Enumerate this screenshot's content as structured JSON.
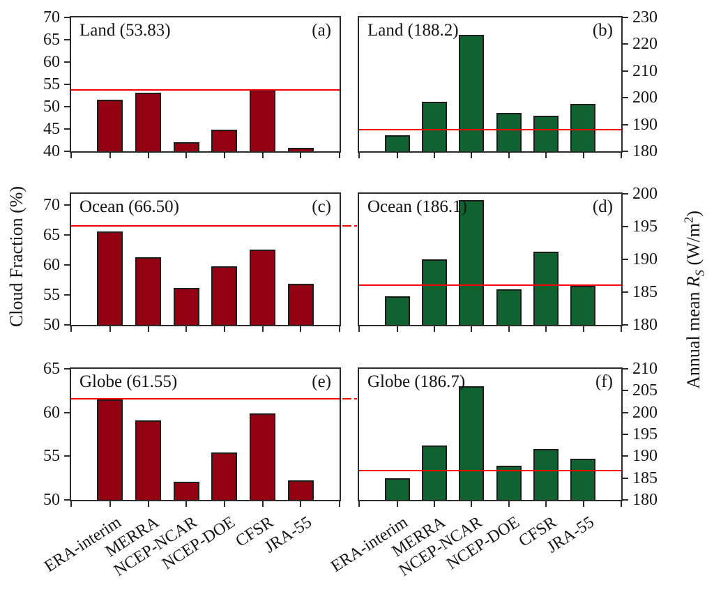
{
  "figure": {
    "ylabel_left": "Cloud Fraction (%)",
    "ylabel_right": {
      "prefix": "Annual mean ",
      "symbol": "R",
      "symbol_sub": "S",
      "unit_open": " (W/m",
      "unit_sup": "2",
      "unit_close": ")"
    }
  },
  "categories": [
    "ERA-interim",
    "MERRA",
    "NCEP-NCAR",
    "NCEP-DOE",
    "CFSR",
    "JRA-55"
  ],
  "colors": {
    "bar_red": "#930011",
    "bar_green": "#106231",
    "ref_line": "#f50000",
    "frame": "#2b2b2b",
    "text": "#151515"
  },
  "chart_data": [
    {
      "type": "bar",
      "panel_label": "(a)",
      "title": "Land (53.83)",
      "region": "Land",
      "series_name": "Cloud Fraction (%)",
      "ref_value": 53.83,
      "values": [
        51.6,
        53.2,
        42.1,
        44.9,
        53.8,
        40.8
      ],
      "ylim": [
        40,
        70
      ],
      "yticks": [
        40,
        45,
        50,
        55,
        60,
        65,
        70
      ],
      "axis_side": "left",
      "bar_color": "#930011",
      "ref_dash_overflow": false
    },
    {
      "type": "bar",
      "panel_label": "(b)",
      "title": "Land (188.2)",
      "region": "Land",
      "series_name": "Annual mean Rs (W/m2)",
      "ref_value": 188.2,
      "values": [
        186.0,
        198.5,
        223.5,
        194.3,
        193.2,
        197.6
      ],
      "ylim": [
        180,
        230
      ],
      "yticks": [
        180,
        190,
        200,
        210,
        220,
        230
      ],
      "axis_side": "right",
      "bar_color": "#106231",
      "ref_dash_overflow": false
    },
    {
      "type": "bar",
      "panel_label": "(c)",
      "title": "Ocean (66.50)",
      "region": "Ocean",
      "series_name": "Cloud Fraction (%)",
      "ref_value": 66.5,
      "values": [
        65.5,
        61.3,
        56.2,
        59.7,
        62.5,
        56.9
      ],
      "ylim": [
        50,
        71.8
      ],
      "yticks": [
        50,
        55,
        60,
        65,
        70
      ],
      "axis_side": "left",
      "bar_color": "#930011",
      "ref_dash_overflow": true
    },
    {
      "type": "bar",
      "panel_label": "(d)",
      "title": "Ocean (186.1)",
      "region": "Ocean",
      "series_name": "Annual mean Rs (W/m2)",
      "ref_value": 186.1,
      "values": [
        184.4,
        190.0,
        199.1,
        185.4,
        191.2,
        186.0
      ],
      "ylim": [
        180,
        200
      ],
      "yticks": [
        180,
        185,
        190,
        195,
        200
      ],
      "axis_side": "right",
      "bar_color": "#106231",
      "ref_dash_overflow": false
    },
    {
      "type": "bar",
      "panel_label": "(e)",
      "title": "Globe (61.55)",
      "region": "Globe",
      "series_name": "Cloud Fraction (%)",
      "ref_value": 61.55,
      "values": [
        61.5,
        59.1,
        52.1,
        55.4,
        59.9,
        52.2
      ],
      "ylim": [
        50,
        65
      ],
      "yticks": [
        50,
        55,
        60,
        65
      ],
      "axis_side": "left",
      "bar_color": "#930011",
      "ref_dash_overflow": true
    },
    {
      "type": "bar",
      "panel_label": "(f)",
      "title": "Globe (186.7)",
      "region": "Globe",
      "series_name": "Annual mean Rs (W/m2)",
      "ref_value": 186.7,
      "values": [
        184.9,
        192.4,
        206.0,
        187.8,
        191.6,
        189.4
      ],
      "ylim": [
        180,
        210
      ],
      "yticks": [
        180,
        185,
        190,
        195,
        200,
        205,
        210
      ],
      "axis_side": "right",
      "bar_color": "#106231",
      "ref_dash_overflow": false
    }
  ]
}
